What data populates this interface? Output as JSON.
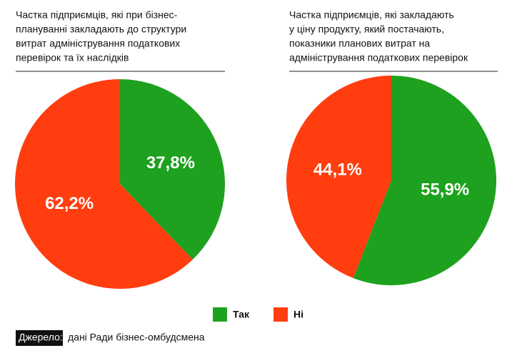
{
  "chart_data": [
    {
      "type": "pie",
      "title": [
        "Частка підприємців, які при бізнес-",
        "плануванні закладають до структури",
        "витрат адміністрування податкових",
        "перевірок та їх наслідків"
      ],
      "values": [
        37.8,
        62.2
      ],
      "value_labels": [
        "37,8%",
        "62,2%"
      ]
    },
    {
      "type": "pie",
      "title": [
        "Частка підприємців, які закладають",
        "у ціну продукту, який постачають,",
        "показники планових витрат на",
        "адміністрування податкових перевірок"
      ],
      "values": [
        55.9,
        44.1
      ],
      "value_labels": [
        "55,9%",
        "44,1%"
      ]
    }
  ],
  "legend": [
    {
      "label": "Так",
      "color": "#1ea11e"
    },
    {
      "label": "Ні",
      "color": "#ff3d0f"
    }
  ],
  "source": {
    "label": "Джерело:",
    "text": "дані Ради бізнес-омбудсмена"
  }
}
